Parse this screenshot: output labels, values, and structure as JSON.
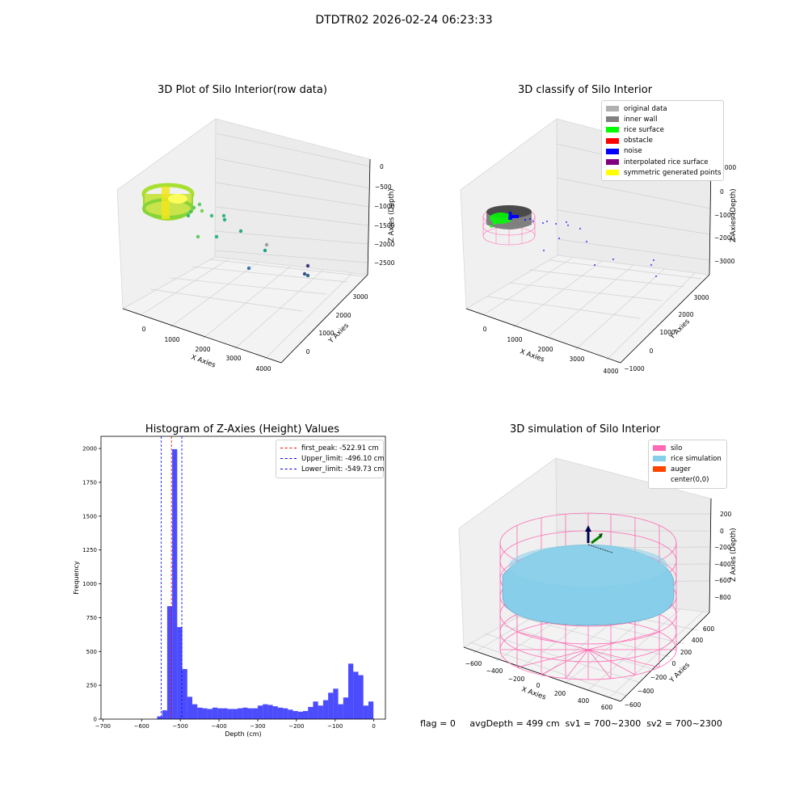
{
  "suptitle": "DTDTR02 2026-02-24 06:23:33",
  "footer": "flag = 0     avgDepth = 499 cm  sv1 = 700~2300  sv2 = 700~2300",
  "colors": {
    "bar": "#0000ff",
    "first_peak": "#ff0000",
    "limits": "#0000ff",
    "silo": "#ff69b4",
    "rice": "#87ceeb",
    "auger": "#ff4500"
  },
  "chart_data": [
    {
      "type": "scatter3d",
      "title": "3D Plot of Silo Interior(row data)",
      "xlabel": "X Axies",
      "ylabel": "Y Axies",
      "zlabel": "Z Axies (Depth)",
      "x_ticks": [
        "0",
        "1000",
        "2000",
        "3000",
        "4000"
      ],
      "y_ticks": [
        "0",
        "1000",
        "2000",
        "3000"
      ],
      "z_ticks": [
        "0",
        "−500",
        "−1000",
        "−1500",
        "−2000",
        "−2500"
      ],
      "colormap": "viridis"
    },
    {
      "type": "scatter3d",
      "title": "3D classify of Silo Interior",
      "xlabel": "X Axies",
      "ylabel": "Y Axies",
      "zlabel": "Z Axies (Depth)",
      "x_ticks": [
        "0",
        "1000",
        "2000",
        "3000",
        "4000"
      ],
      "y_ticks": [
        "−1000",
        "0",
        "1000",
        "2000",
        "3000"
      ],
      "z_ticks": [
        "1000",
        "0",
        "−1000",
        "−2000",
        "−3000"
      ],
      "legend": [
        {
          "label": "original data",
          "color": "#b0b0b0"
        },
        {
          "label": "inner wall",
          "color": "#808080"
        },
        {
          "label": "rice surface",
          "color": "#00ff00"
        },
        {
          "label": "obstacle",
          "color": "#ff0000"
        },
        {
          "label": "noise",
          "color": "#0000ff"
        },
        {
          "label": "interpolated rice surface",
          "color": "#800080"
        },
        {
          "label": "symmetric generated points",
          "color": "#ffff00"
        }
      ]
    },
    {
      "type": "bar",
      "title": "Histogram of Z-Axies (Height) Values",
      "xlabel": "Depth (cm)",
      "ylabel": "Frequency",
      "xlim": [
        -705,
        30
      ],
      "ylim": [
        0,
        2090
      ],
      "x_ticks": [
        -700,
        -600,
        -500,
        -400,
        -300,
        -200,
        -100,
        0
      ],
      "y_ticks": [
        0,
        250,
        500,
        750,
        1000,
        1250,
        1500,
        1750,
        2000
      ],
      "bins": [
        {
          "x0": -560,
          "x1": -547,
          "v": 20
        },
        {
          "x0": -547,
          "x1": -534,
          "v": 65
        },
        {
          "x0": -534,
          "x1": -521,
          "v": 835
        },
        {
          "x0": -521,
          "x1": -508,
          "v": 1995
        },
        {
          "x0": -508,
          "x1": -495,
          "v": 680
        },
        {
          "x0": -495,
          "x1": -482,
          "v": 370
        },
        {
          "x0": -482,
          "x1": -469,
          "v": 165
        },
        {
          "x0": -469,
          "x1": -456,
          "v": 110
        },
        {
          "x0": -456,
          "x1": -443,
          "v": 85
        },
        {
          "x0": -443,
          "x1": -430,
          "v": 80
        },
        {
          "x0": -430,
          "x1": -417,
          "v": 75
        },
        {
          "x0": -417,
          "x1": -404,
          "v": 85
        },
        {
          "x0": -404,
          "x1": -391,
          "v": 80
        },
        {
          "x0": -391,
          "x1": -378,
          "v": 80
        },
        {
          "x0": -378,
          "x1": -365,
          "v": 75
        },
        {
          "x0": -365,
          "x1": -352,
          "v": 75
        },
        {
          "x0": -352,
          "x1": -339,
          "v": 80
        },
        {
          "x0": -339,
          "x1": -326,
          "v": 85
        },
        {
          "x0": -326,
          "x1": -313,
          "v": 80
        },
        {
          "x0": -313,
          "x1": -300,
          "v": 80
        },
        {
          "x0": -300,
          "x1": -287,
          "v": 100
        },
        {
          "x0": -287,
          "x1": -274,
          "v": 110
        },
        {
          "x0": -274,
          "x1": -261,
          "v": 105
        },
        {
          "x0": -261,
          "x1": -248,
          "v": 95
        },
        {
          "x0": -248,
          "x1": -235,
          "v": 85
        },
        {
          "x0": -235,
          "x1": -222,
          "v": 80
        },
        {
          "x0": -222,
          "x1": -209,
          "v": 70
        },
        {
          "x0": -209,
          "x1": -196,
          "v": 60
        },
        {
          "x0": -196,
          "x1": -183,
          "v": 55
        },
        {
          "x0": -183,
          "x1": -170,
          "v": 60
        },
        {
          "x0": -170,
          "x1": -157,
          "v": 90
        },
        {
          "x0": -157,
          "x1": -144,
          "v": 130
        },
        {
          "x0": -144,
          "x1": -131,
          "v": 100
        },
        {
          "x0": -131,
          "x1": -118,
          "v": 140
        },
        {
          "x0": -118,
          "x1": -105,
          "v": 195
        },
        {
          "x0": -105,
          "x1": -92,
          "v": 225
        },
        {
          "x0": -92,
          "x1": -79,
          "v": 110
        },
        {
          "x0": -79,
          "x1": -66,
          "v": 160
        },
        {
          "x0": -66,
          "x1": -53,
          "v": 410
        },
        {
          "x0": -53,
          "x1": -40,
          "v": 350
        },
        {
          "x0": -40,
          "x1": -27,
          "v": 325
        },
        {
          "x0": -27,
          "x1": -14,
          "v": 100
        },
        {
          "x0": -14,
          "x1": -1,
          "v": 130
        }
      ],
      "vlines": [
        {
          "label": "first_peak: -522.91 cm",
          "x": -522.91,
          "color": "#ff0000"
        },
        {
          "label": "Upper_limit: -496.10 cm",
          "x": -496.1,
          "color": "#0000ff"
        },
        {
          "label": "Lower_limit: -549.73 cm",
          "x": -549.73,
          "color": "#0000ff"
        }
      ]
    },
    {
      "type": "surface3d",
      "title": "3D simulation of Silo Interior",
      "xlabel": "X Axies",
      "ylabel": "Y Axies",
      "zlabel": "Z Axies (Depth)",
      "x_ticks": [
        "−600",
        "−400",
        "−200",
        "0",
        "200",
        "400",
        "600"
      ],
      "y_ticks": [
        "−600",
        "−400",
        "−200",
        "0",
        "200",
        "400",
        "600"
      ],
      "z_ticks": [
        "200",
        "0",
        "−200",
        "−400",
        "−600",
        "−800"
      ],
      "legend": [
        {
          "label": "silo",
          "color": "#ff69b4"
        },
        {
          "label": "rice simulation",
          "color": "#87ceeb"
        },
        {
          "label": "auger",
          "color": "#ff4500"
        },
        {
          "label": "center(0,0)",
          "color": "#ffffff"
        }
      ]
    }
  ]
}
